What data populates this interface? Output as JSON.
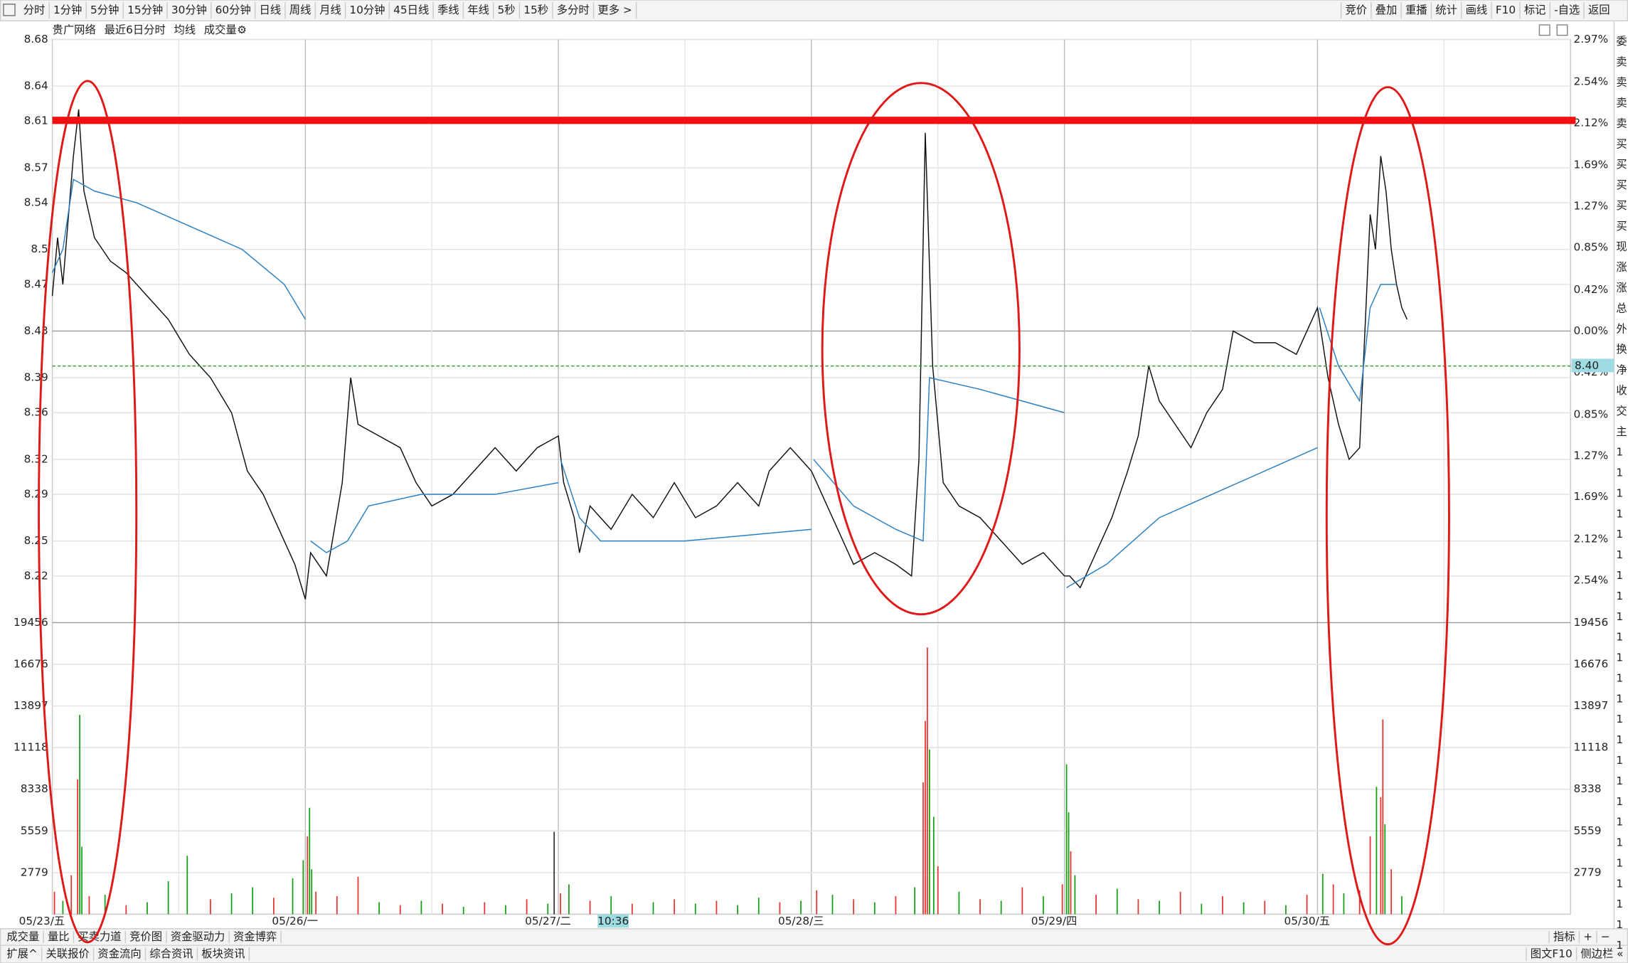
{
  "toolbar": {
    "tabs": [
      "分时",
      "1分钟",
      "5分钟",
      "15分钟",
      "30分钟",
      "60分钟",
      "日线",
      "周线",
      "月线",
      "10分钟",
      "45日线",
      "季线",
      "年线",
      "5秒",
      "15秒",
      "多分时",
      "更多 >"
    ],
    "active": 0,
    "buttons": [
      "竞价",
      "叠加",
      "重播",
      "统计",
      "画线",
      "F10",
      "标记",
      "-自选",
      "返回"
    ]
  },
  "panel_tabs": {
    "tabs": [
      "成交量",
      "量比",
      "买卖力道",
      "竞价图",
      "资金驱动力",
      "资金博弈"
    ],
    "active": 0,
    "buttons": [
      "指标",
      "+",
      "−"
    ]
  },
  "footer": {
    "tabs": [
      "扩展^",
      "关联报价",
      "资金流向",
      "综合资讯",
      "板块资讯"
    ],
    "highlight": [
      3,
      4
    ],
    "buttons": [
      "图文F10",
      "侧边栏 «"
    ]
  },
  "sidebar": {
    "labels": [
      "委",
      "卖",
      "卖",
      "卖",
      "卖",
      "买",
      "买",
      "买",
      "买",
      "买",
      "现",
      "涨",
      "涨",
      "总",
      "外",
      "换",
      "净",
      "收",
      "交",
      "主",
      "1",
      "1",
      "1",
      "1",
      "1",
      "1",
      "1",
      "1",
      "1",
      "1",
      "1",
      "1",
      "1",
      "1",
      "1",
      "1",
      "1",
      "1",
      "1",
      "1",
      "1",
      "1",
      "1",
      "1",
      "1"
    ]
  },
  "chart_data": [
    {
      "type": "line",
      "title": "贵广网络",
      "subtitle": "最近6日分时",
      "xlim": [
        0,
        1440
      ],
      "xticks": [
        {
          "value": 0,
          "label": "05/23/五"
        },
        {
          "value": 240,
          "label": "05/26/一"
        },
        {
          "value": 480,
          "label": "05/27/二"
        },
        {
          "value": 720,
          "label": "05/28/三"
        },
        {
          "value": 960,
          "label": "05/29/四"
        },
        {
          "value": 1200,
          "label": "05/30/五"
        }
      ],
      "ylim": [
        8.18,
        8.68
      ],
      "yticks": [
        8.68,
        8.64,
        8.61,
        8.57,
        8.54,
        8.5,
        8.47,
        8.43,
        8.39,
        8.36,
        8.32,
        8.29,
        8.25,
        8.22
      ],
      "y2lim": [
        -2.97,
        2.97
      ],
      "y2ticks": [
        {
          "value": 2.97,
          "label": "2.97%"
        },
        {
          "value": 2.54,
          "label": "2.54%"
        },
        {
          "value": 2.12,
          "label": "2.12%"
        },
        {
          "value": 1.69,
          "label": "1.69%"
        },
        {
          "value": 1.27,
          "label": "1.27%"
        },
        {
          "value": 0.85,
          "label": "0.85%"
        },
        {
          "value": 0.42,
          "label": "0.42%"
        },
        {
          "value": 0,
          "label": "0.00%"
        },
        {
          "value": -0.42,
          "label": "0.42%"
        },
        {
          "value": -0.85,
          "label": "0.85%"
        },
        {
          "value": -1.27,
          "label": "1.27%"
        },
        {
          "value": -1.69,
          "label": "1.69%"
        },
        {
          "value": -2.12,
          "label": "2.12%"
        },
        {
          "value": -2.54,
          "label": "2.54%"
        }
      ],
      "grid": true,
      "cursor": {
        "x": 532,
        "label": "10:36",
        "y": {
          "value": 8.4,
          "label": "8.40"
        }
      },
      "series": [
        {
          "color": "#111111",
          "x": [
            0,
            5,
            10,
            20,
            25,
            30,
            40,
            55,
            70,
            90,
            110,
            130,
            150,
            170,
            185,
            200,
            215,
            230,
            240,
            245,
            260,
            275,
            283,
            290,
            310,
            330,
            345,
            360,
            380,
            400,
            420,
            440,
            460,
            480,
            485,
            495,
            500,
            510,
            530,
            550,
            570,
            590,
            610,
            630,
            650,
            670,
            680,
            700,
            720,
            730,
            745,
            760,
            780,
            800,
            815,
            822,
            828,
            835,
            845,
            860,
            880,
            900,
            920,
            940,
            960,
            965,
            975,
            990,
            1005,
            1020,
            1030,
            1040,
            1050,
            1065,
            1080,
            1095,
            1110,
            1120,
            1140,
            1160,
            1180,
            1200,
            1210,
            1220,
            1230,
            1240,
            1245,
            1250,
            1255,
            1260,
            1265,
            1270,
            1275,
            1280,
            1285
          ],
          "values": [
            8.46,
            8.51,
            8.47,
            8.58,
            8.62,
            8.55,
            8.51,
            8.49,
            8.48,
            8.46,
            8.44,
            8.41,
            8.39,
            8.36,
            8.31,
            8.29,
            8.26,
            8.23,
            8.2,
            8.24,
            8.22,
            8.3,
            8.39,
            8.35,
            8.34,
            8.33,
            8.3,
            8.28,
            8.29,
            8.31,
            8.33,
            8.31,
            8.33,
            8.34,
            8.3,
            8.27,
            8.24,
            8.28,
            8.26,
            8.29,
            8.27,
            8.3,
            8.27,
            8.28,
            8.3,
            8.28,
            8.31,
            8.33,
            8.31,
            8.29,
            8.26,
            8.23,
            8.24,
            8.23,
            8.22,
            8.32,
            8.6,
            8.4,
            8.3,
            8.28,
            8.27,
            8.25,
            8.23,
            8.24,
            8.22,
            8.22,
            8.21,
            8.24,
            8.27,
            8.31,
            8.34,
            8.4,
            8.37,
            8.35,
            8.33,
            8.36,
            8.38,
            8.43,
            8.42,
            8.42,
            8.41,
            8.45,
            8.39,
            8.35,
            8.32,
            8.33,
            8.43,
            8.53,
            8.5,
            8.58,
            8.55,
            8.5,
            8.47,
            8.45,
            8.44
          ]
        },
        {
          "name": "均线",
          "color": "#2a7fc4",
          "x": [
            0,
            10,
            20,
            40,
            80,
            130,
            180,
            220,
            240,
            241,
            245,
            260,
            280,
            300,
            350,
            420,
            480,
            481,
            482,
            500,
            520,
            600,
            720,
            721,
            722,
            760,
            800,
            826,
            832,
            880,
            960,
            961,
            962,
            1000,
            1050,
            1100,
            1150,
            1200,
            1201,
            1202,
            1220,
            1240,
            1250,
            1260,
            1275
          ],
          "values": [
            8.48,
            8.5,
            8.56,
            8.55,
            8.54,
            8.52,
            8.5,
            8.47,
            8.44,
            null,
            8.25,
            8.24,
            8.25,
            8.28,
            8.29,
            8.29,
            8.3,
            null,
            8.32,
            8.27,
            8.25,
            8.25,
            8.26,
            null,
            8.32,
            8.28,
            8.26,
            8.25,
            8.39,
            8.38,
            8.36,
            null,
            8.21,
            8.23,
            8.27,
            8.29,
            8.31,
            8.33,
            null,
            8.45,
            8.4,
            8.37,
            8.45,
            8.47,
            8.47
          ]
        }
      ]
    },
    {
      "type": "bar",
      "xlim": [
        0,
        1440
      ],
      "ylim": [
        0,
        19456
      ],
      "yticks": [
        19456,
        16676,
        13897,
        11118,
        8338,
        5559,
        2779
      ],
      "series": [
        {
          "name": "成交量",
          "x": [
            2,
            10,
            18,
            24,
            26,
            28,
            35,
            50,
            70,
            90,
            110,
            128,
            150,
            170,
            190,
            210,
            228,
            238,
            242,
            244,
            246,
            250,
            270,
            290,
            310,
            330,
            350,
            370,
            390,
            410,
            430,
            450,
            470,
            476,
            482,
            490,
            510,
            530,
            550,
            570,
            590,
            610,
            630,
            650,
            670,
            690,
            710,
            725,
            740,
            760,
            780,
            800,
            818,
            826,
            828,
            830,
            832,
            836,
            840,
            860,
            880,
            900,
            920,
            940,
            958,
            962,
            964,
            966,
            970,
            990,
            1010,
            1030,
            1050,
            1070,
            1090,
            1110,
            1130,
            1150,
            1170,
            1190,
            1205,
            1215,
            1225,
            1240,
            1250,
            1256,
            1260,
            1262,
            1264,
            1270,
            1280
          ],
          "values": [
            1500,
            900,
            2600,
            9000,
            13300,
            4500,
            1200,
            1300,
            600,
            800,
            2200,
            3900,
            1000,
            1400,
            1800,
            1100,
            2400,
            3600,
            5200,
            7100,
            3000,
            1500,
            1200,
            2500,
            800,
            600,
            900,
            700,
            500,
            800,
            600,
            1000,
            700,
            5500,
            1400,
            2000,
            900,
            1200,
            700,
            800,
            1000,
            700,
            900,
            600,
            1100,
            800,
            900,
            1600,
            1300,
            1000,
            800,
            1200,
            1800,
            8800,
            12900,
            17800,
            11000,
            6500,
            3200,
            1500,
            1000,
            900,
            1800,
            1200,
            2000,
            10000,
            6800,
            4200,
            2600,
            1300,
            1700,
            1000,
            900,
            1500,
            700,
            1200,
            800,
            900,
            600,
            1300,
            2700,
            2000,
            1400,
            1600,
            5200,
            8500,
            7800,
            13000,
            6000,
            3000,
            1200
          ],
          "colors": [
            "#e8322e",
            "#159e15",
            "#e8322e",
            "#e8322e",
            "#159e15",
            "#159e15",
            "#e8322e",
            "#159e15",
            "#e8322e",
            "#159e15",
            "#159e15",
            "#159e15",
            "#e8322e",
            "#159e15",
            "#159e15",
            "#e8322e",
            "#159e15",
            "#159e15",
            "#e8322e",
            "#159e15",
            "#159e15",
            "#e8322e",
            "#e8322e",
            "#e8322e",
            "#159e15",
            "#e8322e",
            "#159e15",
            "#e8322e",
            "#159e15",
            "#e8322e",
            "#159e15",
            "#e8322e",
            "#159e15",
            "#333333",
            "#e8322e",
            "#159e15",
            "#e8322e",
            "#159e15",
            "#e8322e",
            "#159e15",
            "#e8322e",
            "#159e15",
            "#e8322e",
            "#159e15",
            "#159e15",
            "#e8322e",
            "#159e15",
            "#e8322e",
            "#159e15",
            "#e8322e",
            "#159e15",
            "#e8322e",
            "#159e15",
            "#e8322e",
            "#e8322e",
            "#e8322e",
            "#159e15",
            "#159e15",
            "#e8322e",
            "#159e15",
            "#e8322e",
            "#159e15",
            "#e8322e",
            "#159e15",
            "#e8322e",
            "#159e15",
            "#159e15",
            "#e8322e",
            "#159e15",
            "#e8322e",
            "#159e15",
            "#e8322e",
            "#159e15",
            "#e8322e",
            "#159e15",
            "#e8322e",
            "#159e15",
            "#e8322e",
            "#159e15",
            "#e8322e",
            "#159e15",
            "#e8322e",
            "#159e15",
            "#e8322e",
            "#e8322e",
            "#159e15",
            "#e8322e",
            "#e8322e",
            "#159e15",
            "#e8322e",
            "#159e15"
          ]
        }
      ]
    }
  ]
}
